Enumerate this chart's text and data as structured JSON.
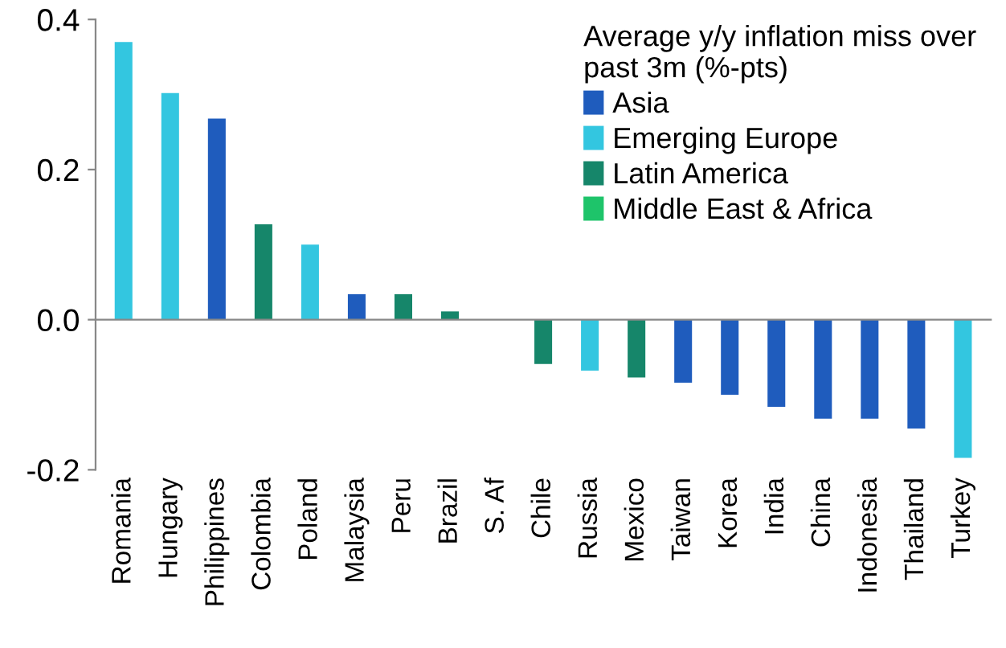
{
  "chart_data": {
    "type": "bar",
    "legend_title": "Average y/y inflation miss over\npast 3m (%-pts)",
    "categories": [
      "Romania",
      "Hungary",
      "Philippines",
      "Colombia",
      "Poland",
      "Malaysia",
      "Peru",
      "Brazil",
      "S. Af",
      "Chile",
      "Russia",
      "Mexico",
      "Taiwan",
      "Korea",
      "India",
      "China",
      "Indonesia",
      "Thailand",
      "Turkey"
    ],
    "series": [
      {
        "name": "Asia",
        "color": "#1f5cbd",
        "values": [
          null,
          null,
          0.268,
          null,
          null,
          0.034,
          null,
          null,
          null,
          null,
          null,
          null,
          -0.084,
          -0.1,
          -0.116,
          -0.132,
          -0.132,
          -0.145,
          null
        ]
      },
      {
        "name": "Emerging Europe",
        "color": "#33c6e0",
        "values": [
          0.37,
          0.302,
          null,
          null,
          0.1,
          null,
          null,
          null,
          null,
          null,
          -0.068,
          null,
          null,
          null,
          null,
          null,
          null,
          null,
          -0.184
        ]
      },
      {
        "name": "Latin America",
        "color": "#16866a",
        "values": [
          null,
          null,
          null,
          0.127,
          null,
          null,
          0.034,
          0.011,
          null,
          -0.059,
          null,
          -0.077,
          null,
          null,
          null,
          null,
          null,
          null,
          null
        ]
      },
      {
        "name": "Middle East & Africa",
        "color": "#1ec46a",
        "values": [
          null,
          null,
          null,
          null,
          null,
          null,
          null,
          null,
          0.0,
          null,
          null,
          null,
          null,
          null,
          null,
          null,
          null,
          null,
          null
        ]
      }
    ],
    "ylim": [
      -0.2,
      0.4
    ],
    "yticks": [
      {
        "value": -0.2,
        "label": "-0.2"
      },
      {
        "value": 0,
        "label": "0.0"
      },
      {
        "value": 0.2,
        "label": "0.2"
      },
      {
        "value": 0.4,
        "label": "0.4"
      }
    ],
    "legend": "top right"
  }
}
